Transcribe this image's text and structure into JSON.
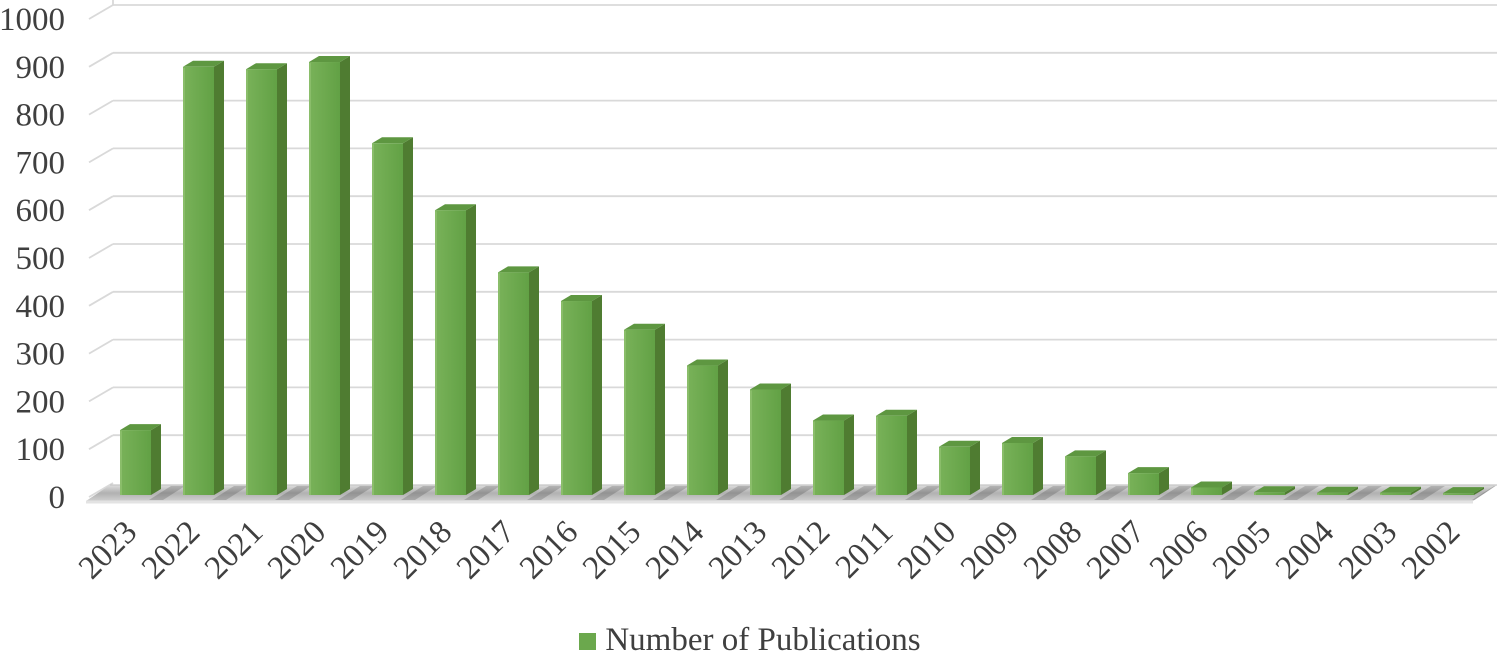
{
  "chart_data": {
    "type": "bar",
    "variant": "3d-column",
    "title": "",
    "xlabel": "",
    "ylabel": "",
    "categories": [
      "2023",
      "2022",
      "2021",
      "2020",
      "2019",
      "2018",
      "2017",
      "2016",
      "2015",
      "2014",
      "2013",
      "2012",
      "2011",
      "2010",
      "2009",
      "2008",
      "2007",
      "2006",
      "2005",
      "2004",
      "2003",
      "2002"
    ],
    "series": [
      {
        "name": "Number of Publications",
        "values": [
          140,
          900,
          895,
          910,
          740,
          600,
          470,
          410,
          350,
          275,
          225,
          160,
          170,
          105,
          113,
          85,
          50,
          20,
          10,
          9,
          9,
          8
        ]
      }
    ],
    "ylim": [
      0,
      1000
    ],
    "ytick_interval": 100,
    "grid": true,
    "legend": {
      "position": "bottom",
      "entries": [
        {
          "label": "Number of Publications",
          "color": "#6ba84d"
        }
      ]
    },
    "colors": {
      "bar_front": "#6ba84d",
      "bar_front_light": "#79b259",
      "bar_front_dark": "#62a145",
      "bar_side": "#4f7c31",
      "bar_top": "#5e9741",
      "bar_highlight": "#93c373",
      "gridline": "#d9d9d9",
      "axis_text": "#3f3f3f",
      "floor_light": "#dedede",
      "floor_mid": "#b1b1b1",
      "floor_front": "#cfcfcf",
      "shadow": "rgba(0,0,0,0.17)",
      "background": "#ffffff"
    }
  }
}
